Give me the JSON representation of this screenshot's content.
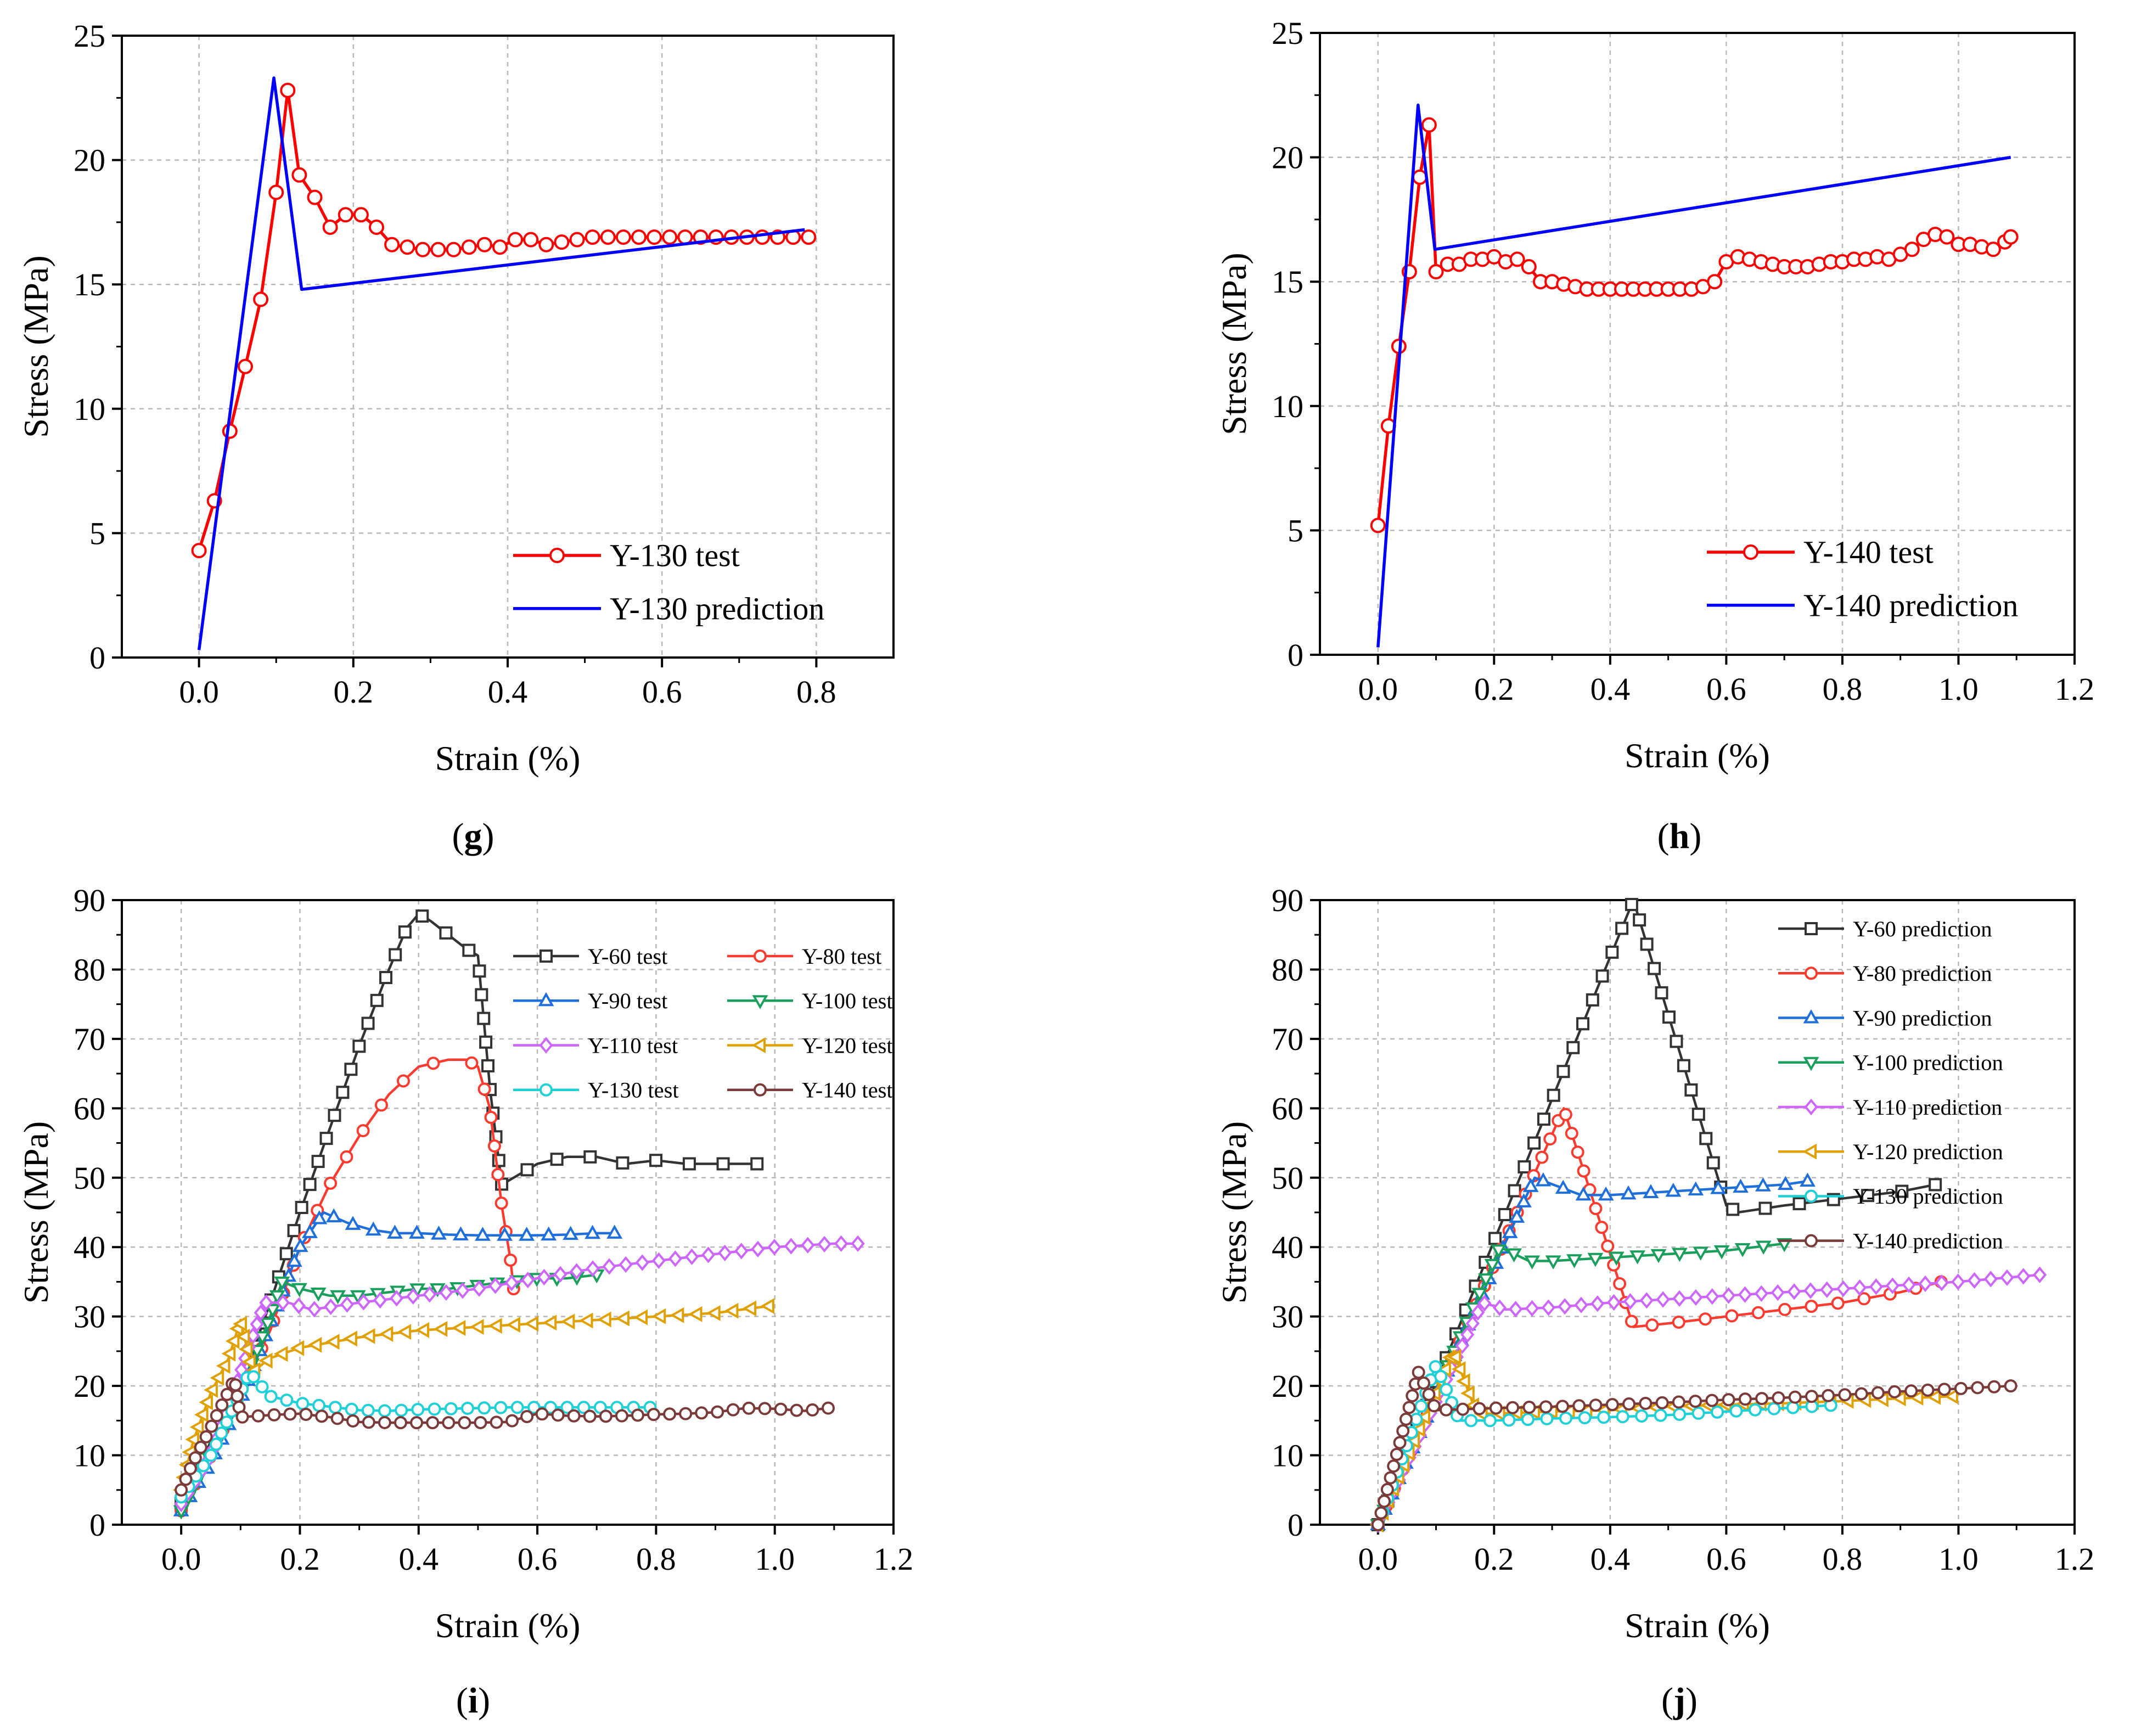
{
  "chart_data": [
    {
      "panel": "g",
      "type": "line",
      "xlabel": "Strain (%)",
      "ylabel": "Stress (MPa)",
      "xlim": [
        -0.1,
        0.9
      ],
      "ylim": [
        0,
        25
      ],
      "xticks": [
        0.0,
        0.2,
        0.4,
        0.6,
        0.8
      ],
      "xtick_labels": [
        "0.0",
        "0.2",
        "0.4",
        "0.6",
        "0.8"
      ],
      "yticks": [
        0,
        5,
        10,
        15,
        20,
        25
      ],
      "ytick_labels": [
        "0",
        "5",
        "10",
        "15",
        "20",
        "25"
      ],
      "legend_position": "bottom-right",
      "legend_font": 1.0,
      "series": [
        {
          "name": "Y-130 test",
          "color": "#ff0000",
          "marker": "circle",
          "x": [
            0.0,
            0.02,
            0.04,
            0.06,
            0.08,
            0.1,
            0.115,
            0.13,
            0.15,
            0.17,
            0.19,
            0.21,
            0.23,
            0.25,
            0.27,
            0.29,
            0.31,
            0.33,
            0.35,
            0.37,
            0.39,
            0.41,
            0.43,
            0.45,
            0.47,
            0.49,
            0.51,
            0.53,
            0.55,
            0.57,
            0.59,
            0.61,
            0.63,
            0.65,
            0.67,
            0.69,
            0.71,
            0.73,
            0.75,
            0.77,
            0.79
          ],
          "y": [
            4.3,
            6.3,
            9.1,
            11.7,
            14.4,
            18.7,
            22.8,
            19.4,
            18.5,
            17.3,
            17.8,
            17.8,
            17.3,
            16.6,
            16.5,
            16.4,
            16.4,
            16.4,
            16.5,
            16.6,
            16.5,
            16.8,
            16.8,
            16.6,
            16.7,
            16.8,
            16.9,
            16.9,
            16.9,
            16.9,
            16.9,
            16.9,
            16.9,
            16.9,
            16.9,
            16.9,
            16.9,
            16.9,
            16.9,
            16.9,
            16.9
          ]
        },
        {
          "name": "Y-130 prediction",
          "color": "#0000ff",
          "marker": "none",
          "x": [
            0.0,
            0.097,
            0.133,
            0.785
          ],
          "y": [
            0.3,
            23.3,
            14.8,
            17.2
          ]
        }
      ]
    },
    {
      "panel": "h",
      "type": "line",
      "xlabel": "Strain (%)",
      "ylabel": "Stress (MPa)",
      "xlim": [
        -0.1,
        1.2
      ],
      "ylim": [
        0,
        25
      ],
      "xticks": [
        0.0,
        0.2,
        0.4,
        0.6,
        0.8,
        1.0,
        1.2
      ],
      "xtick_labels": [
        "0.0",
        "0.2",
        "0.4",
        "0.6",
        "0.8",
        "1.0",
        "1.2"
      ],
      "yticks": [
        0,
        5,
        10,
        15,
        20,
        25
      ],
      "ytick_labels": [
        "0",
        "5",
        "10",
        "15",
        "20",
        "25"
      ],
      "legend_position": "bottom-right",
      "legend_font": 1.0,
      "series": [
        {
          "name": "Y-140 test",
          "color": "#ff0000",
          "marker": "circle",
          "x": [
            0.0,
            0.018,
            0.036,
            0.054,
            0.072,
            0.088,
            0.1,
            0.12,
            0.14,
            0.16,
            0.18,
            0.2,
            0.22,
            0.24,
            0.26,
            0.28,
            0.3,
            0.32,
            0.34,
            0.36,
            0.38,
            0.4,
            0.42,
            0.44,
            0.46,
            0.48,
            0.5,
            0.52,
            0.54,
            0.56,
            0.58,
            0.6,
            0.62,
            0.64,
            0.66,
            0.68,
            0.7,
            0.72,
            0.74,
            0.76,
            0.78,
            0.8,
            0.82,
            0.84,
            0.86,
            0.88,
            0.9,
            0.92,
            0.94,
            0.96,
            0.98,
            1.0,
            1.02,
            1.04,
            1.06,
            1.08,
            1.09
          ],
          "y": [
            5.2,
            9.2,
            12.4,
            15.4,
            19.2,
            21.3,
            15.4,
            15.7,
            15.7,
            15.9,
            15.9,
            16.0,
            15.8,
            15.9,
            15.6,
            15.0,
            15.0,
            14.9,
            14.8,
            14.7,
            14.7,
            14.7,
            14.7,
            14.7,
            14.7,
            14.7,
            14.7,
            14.7,
            14.7,
            14.8,
            15.0,
            15.8,
            16.0,
            15.9,
            15.8,
            15.7,
            15.6,
            15.6,
            15.6,
            15.7,
            15.8,
            15.8,
            15.9,
            15.9,
            16.0,
            15.9,
            16.1,
            16.3,
            16.7,
            16.9,
            16.8,
            16.5,
            16.5,
            16.4,
            16.3,
            16.6,
            16.8
          ]
        },
        {
          "name": "Y-140 prediction",
          "color": "#0000ff",
          "marker": "none",
          "x": [
            0.0,
            0.069,
            0.098,
            1.09
          ],
          "y": [
            0.3,
            22.1,
            16.3,
            20.0
          ]
        }
      ]
    },
    {
      "panel": "i",
      "type": "line",
      "xlabel": "Strain (%)",
      "ylabel": "Stress (MPa)",
      "xlim": [
        -0.1,
        1.2
      ],
      "ylim": [
        0,
        90
      ],
      "xticks": [
        0.0,
        0.2,
        0.4,
        0.6,
        0.8,
        1.0,
        1.2
      ],
      "xtick_labels": [
        "0.0",
        "0.2",
        "0.4",
        "0.6",
        "0.8",
        "1.0",
        "1.2"
      ],
      "yticks": [
        0,
        10,
        20,
        30,
        40,
        50,
        60,
        70,
        80,
        90
      ],
      "ytick_labels": [
        "0",
        "10",
        "20",
        "30",
        "40",
        "50",
        "60",
        "70",
        "80",
        "90"
      ],
      "legend_position": "top-right, two columns",
      "legend_font": 0.7,
      "series": [
        {
          "name": "Y-60 test",
          "color": "#333333",
          "marker": "square",
          "x": [
            0.0,
            0.05,
            0.1,
            0.15,
            0.2,
            0.25,
            0.3,
            0.35,
            0.38,
            0.4,
            0.42,
            0.45,
            0.48,
            0.5,
            0.52,
            0.54,
            0.56,
            0.6,
            0.65,
            0.7,
            0.75,
            0.8,
            0.85,
            0.9,
            0.95,
            0.97
          ],
          "y": [
            3.0,
            12.0,
            20.0,
            32.0,
            45.0,
            57.0,
            69.0,
            80.0,
            86.0,
            88.0,
            87.0,
            85.0,
            83.0,
            82.0,
            63.0,
            49.0,
            50.0,
            52.0,
            53.0,
            53.0,
            52.0,
            52.5,
            52.0,
            52.0,
            52.0,
            52.0
          ]
        },
        {
          "name": "Y-80 test",
          "color": "#ff3b30",
          "marker": "circle",
          "x": [
            0.0,
            0.05,
            0.1,
            0.15,
            0.2,
            0.25,
            0.3,
            0.35,
            0.4,
            0.45,
            0.48,
            0.5,
            0.52,
            0.54,
            0.555,
            0.56
          ],
          "y": [
            2.0,
            10.0,
            19.0,
            28.0,
            40.0,
            49.0,
            56.0,
            62.0,
            66.0,
            67.0,
            67.0,
            66.0,
            60.0,
            46.0,
            38.0,
            34.0
          ]
        },
        {
          "name": "Y-90 test",
          "color": "#1e6fd9",
          "marker": "triangle-up",
          "x": [
            0.0,
            0.05,
            0.1,
            0.15,
            0.2,
            0.24,
            0.28,
            0.32,
            0.36,
            0.4,
            0.45,
            0.5,
            0.55,
            0.6,
            0.65,
            0.7,
            0.73
          ],
          "y": [
            2.0,
            9.0,
            18.0,
            29.0,
            40.0,
            45.0,
            43.5,
            42.5,
            42.0,
            42.0,
            41.8,
            41.7,
            41.7,
            41.7,
            41.8,
            42.0,
            42.0
          ]
        },
        {
          "name": "Y-100 test",
          "color": "#1a9e5c",
          "marker": "triangle-down",
          "x": [
            0.0,
            0.05,
            0.1,
            0.15,
            0.17,
            0.2,
            0.25,
            0.3,
            0.35,
            0.4,
            0.45,
            0.5,
            0.55,
            0.6,
            0.65,
            0.7
          ],
          "y": [
            2.0,
            10.0,
            19.0,
            30.0,
            35.0,
            34.0,
            33.0,
            33.0,
            33.5,
            34.0,
            34.0,
            34.5,
            35.0,
            35.5,
            35.5,
            36.0
          ]
        },
        {
          "name": "Y-110 test",
          "color": "#cc66ff",
          "marker": "diamond",
          "x": [
            0.0,
            0.05,
            0.1,
            0.14,
            0.18,
            0.22,
            0.3,
            0.4,
            0.5,
            0.6,
            0.7,
            0.8,
            0.9,
            1.0,
            1.1,
            1.14
          ],
          "y": [
            3.0,
            10.0,
            22.0,
            32.0,
            32.0,
            31.0,
            32.0,
            33.0,
            34.0,
            35.5,
            37.0,
            38.0,
            39.0,
            40.0,
            40.5,
            40.5
          ]
        },
        {
          "name": "Y-120 test",
          "color": "#e0a000",
          "marker": "triangle-left",
          "x": [
            0.0,
            0.02,
            0.05,
            0.08,
            0.1,
            0.12,
            0.15,
            0.2,
            0.3,
            0.4,
            0.5,
            0.6,
            0.7,
            0.8,
            0.9,
            0.99
          ],
          "y": [
            5.0,
            12.0,
            19.0,
            24.0,
            29.5,
            22.0,
            24.0,
            25.5,
            27.0,
            28.0,
            28.5,
            29.0,
            29.5,
            30.0,
            30.5,
            31.5
          ]
        },
        {
          "name": "Y-130 test",
          "color": "#1fd0d6",
          "marker": "circle",
          "x": [
            0.0,
            0.05,
            0.1,
            0.115,
            0.15,
            0.2,
            0.25,
            0.3,
            0.35,
            0.4,
            0.45,
            0.5,
            0.55,
            0.6,
            0.65,
            0.7,
            0.75,
            0.79
          ],
          "y": [
            4.0,
            10.0,
            19.0,
            22.0,
            18.5,
            17.5,
            17.0,
            16.5,
            16.4,
            16.6,
            16.7,
            16.8,
            16.9,
            16.9,
            16.9,
            16.9,
            16.9,
            16.9
          ]
        },
        {
          "name": "Y-140 test",
          "color": "#7b3a3a",
          "marker": "circle",
          "x": [
            0.0,
            0.02,
            0.05,
            0.09,
            0.1,
            0.15,
            0.2,
            0.25,
            0.3,
            0.35,
            0.4,
            0.45,
            0.5,
            0.55,
            0.6,
            0.65,
            0.7,
            0.75,
            0.8,
            0.85,
            0.9,
            0.95,
            1.0,
            1.05,
            1.09
          ],
          "y": [
            5.0,
            9.0,
            14.0,
            21.0,
            15.5,
            15.8,
            16.0,
            15.5,
            14.8,
            14.7,
            14.7,
            14.7,
            14.7,
            14.8,
            16.0,
            15.7,
            15.6,
            15.7,
            15.9,
            16.0,
            16.2,
            16.8,
            16.7,
            16.4,
            16.8
          ]
        }
      ]
    },
    {
      "panel": "j",
      "type": "line",
      "xlabel": "Strain (%)",
      "ylabel": "Stress (MPa)",
      "xlim": [
        -0.1,
        1.2
      ],
      "ylim": [
        0,
        90
      ],
      "xticks": [
        0.0,
        0.2,
        0.4,
        0.6,
        0.8,
        1.0,
        1.2
      ],
      "xtick_labels": [
        "0.0",
        "0.2",
        "0.4",
        "0.6",
        "0.8",
        "1.0",
        "1.2"
      ],
      "yticks": [
        0,
        10,
        20,
        30,
        40,
        50,
        60,
        70,
        80,
        90
      ],
      "ytick_labels": [
        "0",
        "10",
        "20",
        "30",
        "40",
        "50",
        "60",
        "70",
        "80",
        "90"
      ],
      "legend_position": "top-right, one column",
      "legend_font": 0.7,
      "series": [
        {
          "name": "Y-60 prediction",
          "color": "#333333",
          "marker": "square",
          "x": [
            0.0,
            0.44,
            0.6,
            0.62,
            0.7,
            0.8,
            0.9,
            0.96
          ],
          "y": [
            0.0,
            90.0,
            46.0,
            45.0,
            46.0,
            47.0,
            48.0,
            49.0
          ]
        },
        {
          "name": "Y-80 prediction",
          "color": "#ff3b30",
          "marker": "circle",
          "x": [
            0.0,
            0.32,
            0.44,
            0.5,
            0.6,
            0.7,
            0.8,
            0.9,
            0.97
          ],
          "y": [
            0.0,
            60.0,
            28.5,
            29.0,
            30.0,
            31.0,
            32.0,
            33.5,
            35.0
          ]
        },
        {
          "name": "Y-90 prediction",
          "color": "#1e6fd9",
          "marker": "triangle-up",
          "x": [
            0.0,
            0.27,
            0.35,
            0.4,
            0.5,
            0.6,
            0.7,
            0.74
          ],
          "y": [
            0.0,
            50.0,
            47.5,
            47.5,
            48.0,
            48.5,
            49.0,
            49.5
          ]
        },
        {
          "name": "Y-100 prediction",
          "color": "#1a9e5c",
          "marker": "triangle-down",
          "x": [
            0.0,
            0.21,
            0.26,
            0.3,
            0.4,
            0.5,
            0.6,
            0.7
          ],
          "y": [
            0.0,
            40.0,
            38.0,
            38.0,
            38.5,
            39.0,
            39.5,
            40.5
          ]
        },
        {
          "name": "Y-110 prediction",
          "color": "#cc66ff",
          "marker": "diamond",
          "x": [
            0.0,
            0.18,
            0.22,
            0.3,
            0.4,
            0.5,
            0.6,
            0.7,
            0.8,
            0.9,
            1.0,
            1.14
          ],
          "y": [
            0.0,
            32.0,
            31.0,
            31.3,
            32.0,
            32.5,
            33.0,
            33.5,
            34.0,
            34.5,
            35.0,
            36.0
          ]
        },
        {
          "name": "Y-120 prediction",
          "color": "#e0a000",
          "marker": "triangle-left",
          "x": [
            0.0,
            0.13,
            0.17,
            0.2,
            0.3,
            0.4,
            0.5,
            0.6,
            0.7,
            0.8,
            0.9,
            0.99
          ],
          "y": [
            0.0,
            25.0,
            16.0,
            16.0,
            16.3,
            16.5,
            17.0,
            17.3,
            17.5,
            17.8,
            18.2,
            18.5
          ]
        },
        {
          "name": "Y-130 prediction",
          "color": "#1fd0d6",
          "marker": "circle",
          "x": [
            0.0,
            0.1,
            0.14,
            0.2,
            0.3,
            0.4,
            0.5,
            0.6,
            0.7,
            0.78
          ],
          "y": [
            0.0,
            23.0,
            15.0,
            15.0,
            15.3,
            15.5,
            15.8,
            16.3,
            16.8,
            17.2
          ]
        },
        {
          "name": "Y-140 prediction",
          "color": "#7b3a3a",
          "marker": "circle",
          "x": [
            0.0,
            0.07,
            0.1,
            0.2,
            0.3,
            0.4,
            0.5,
            0.6,
            0.7,
            0.8,
            0.9,
            1.0,
            1.09
          ],
          "y": [
            0.0,
            22.0,
            16.5,
            16.8,
            17.0,
            17.3,
            17.6,
            18.0,
            18.3,
            18.7,
            19.2,
            19.6,
            20.0
          ]
        }
      ]
    }
  ],
  "captions": [
    "(g)",
    "(h)",
    "(i)",
    "(j)"
  ]
}
